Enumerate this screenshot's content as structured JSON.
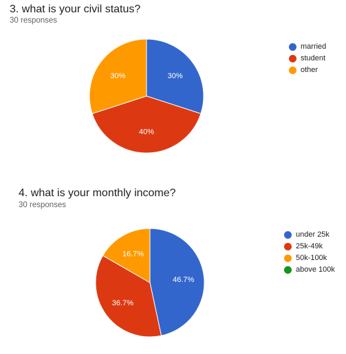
{
  "chart_data": [
    {
      "type": "pie",
      "title": "3. what is your civil status?",
      "subtitle": "30 responses",
      "categories": [
        "married",
        "student",
        "other"
      ],
      "values": [
        30,
        40,
        30
      ],
      "value_labels": [
        "30%",
        "40%",
        "30%"
      ],
      "colors": [
        "#3366cc",
        "#dc3912",
        "#ff9900"
      ],
      "legend_position": "right"
    },
    {
      "type": "pie",
      "title": "4. what is your monthly income?",
      "subtitle": "30 responses",
      "categories": [
        "under 25k",
        "25k-49k",
        "50k-100k",
        "above 100k"
      ],
      "values": [
        46.7,
        36.7,
        16.7,
        0
      ],
      "value_labels": [
        "46.7%",
        "36.7%",
        "16.7%",
        ""
      ],
      "colors": [
        "#3366cc",
        "#dc3912",
        "#ff9900",
        "#109618"
      ],
      "legend_position": "right"
    }
  ]
}
